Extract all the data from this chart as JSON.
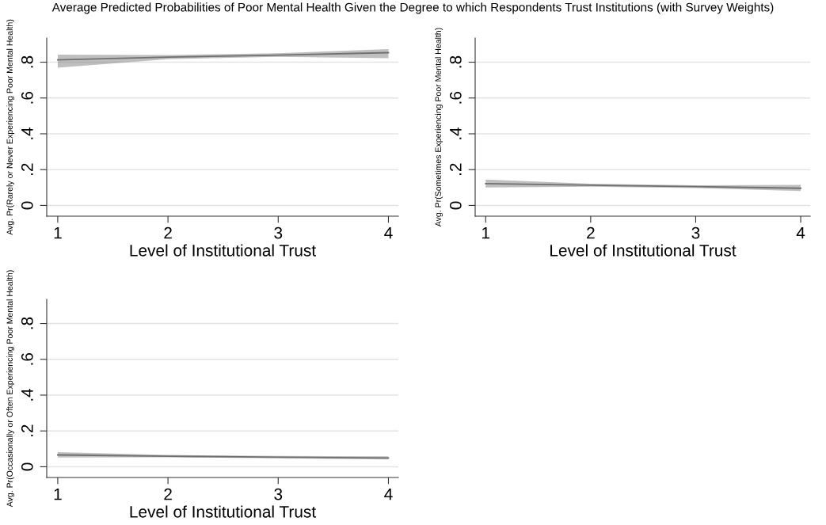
{
  "chart_data": [
    {
      "type": "line",
      "title": "Average Predicted Probabilities of Poor Mental Health Given the Degree to which Respondents Trust Institutions (with Survey Weights)",
      "xlabel": "Level of Institutional Trust",
      "ylabel": "Avg. Pr(Rarely or Never Experiencing Poor Mental Health)",
      "x": [
        1,
        2,
        3,
        4
      ],
      "xlim": [
        0.9,
        4.09
      ],
      "xticks": [
        1,
        2,
        3,
        4
      ],
      "ylim": [
        -0.06,
        0.935
      ],
      "yticks": [
        {
          "value": 0,
          "label": "0"
        },
        {
          "value": 0.2,
          "label": ".2"
        },
        {
          "value": 0.4,
          "label": ".4"
        },
        {
          "value": 0.6,
          "label": ".6"
        },
        {
          "value": 0.8,
          "label": ".8"
        }
      ],
      "grid": "y",
      "legend": false,
      "series": [
        {
          "color": "#707070",
          "values": [
            0.813,
            0.828,
            0.839,
            0.853
          ],
          "lower": [
            0.769,
            0.817,
            0.83,
            0.822
          ],
          "upper": [
            0.842,
            0.84,
            0.85,
            0.873
          ]
        }
      ]
    },
    {
      "type": "line",
      "xlabel": "Level of Institutional Trust",
      "ylabel": "Avg. Pr(Sometimes Experiencing Poor Mental Health)",
      "x": [
        1,
        2,
        3,
        4
      ],
      "xlim": [
        0.9,
        4.09
      ],
      "xticks": [
        1,
        2,
        3,
        4
      ],
      "ylim": [
        -0.06,
        0.935
      ],
      "yticks": [
        {
          "value": 0,
          "label": "0"
        },
        {
          "value": 0.2,
          "label": ".2"
        },
        {
          "value": 0.4,
          "label": ".4"
        },
        {
          "value": 0.6,
          "label": ".6"
        },
        {
          "value": 0.8,
          "label": ".8"
        }
      ],
      "grid": "y",
      "legend": false,
      "series": [
        {
          "color": "#707070",
          "values": [
            0.122,
            0.113,
            0.105,
            0.096
          ],
          "lower": [
            0.1,
            0.105,
            0.097,
            0.08
          ],
          "upper": [
            0.144,
            0.121,
            0.113,
            0.115
          ]
        }
      ]
    },
    {
      "type": "line",
      "xlabel": "Level of Institutional Trust",
      "ylabel": "Avg. Pr(Occasionally or Often Experiencing Poor Mental Health)",
      "x": [
        1,
        2,
        3,
        4
      ],
      "xlim": [
        0.9,
        4.09
      ],
      "xticks": [
        1,
        2,
        3,
        4
      ],
      "ylim": [
        -0.06,
        0.935
      ],
      "yticks": [
        {
          "value": 0,
          "label": "0"
        },
        {
          "value": 0.2,
          "label": ".2"
        },
        {
          "value": 0.4,
          "label": ".4"
        },
        {
          "value": 0.6,
          "label": ".6"
        },
        {
          "value": 0.8,
          "label": ".8"
        }
      ],
      "grid": "y",
      "legend": false,
      "series": [
        {
          "color": "#707070",
          "values": [
            0.066,
            0.059,
            0.053,
            0.049
          ],
          "lower": [
            0.052,
            0.053,
            0.047,
            0.041
          ],
          "upper": [
            0.081,
            0.066,
            0.06,
            0.058
          ]
        }
      ]
    }
  ]
}
